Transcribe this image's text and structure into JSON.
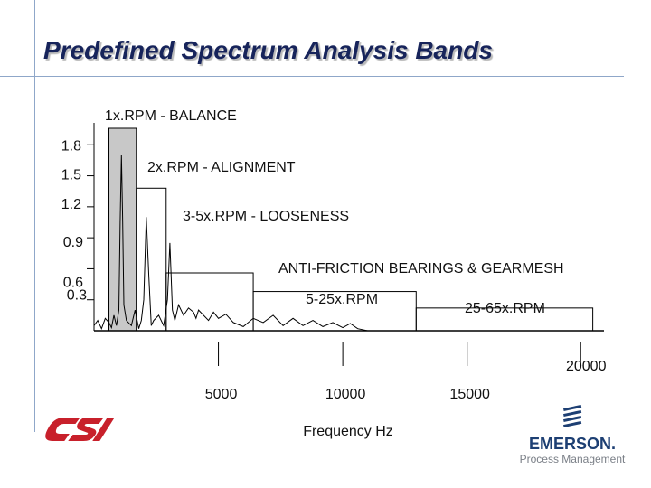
{
  "slide": {
    "title": "Predefined Spectrum Analysis Bands"
  },
  "chart_data": {
    "type": "line",
    "title": "Predefined Spectrum Analysis Bands",
    "xlabel": "Frequency Hz",
    "ylabel": "",
    "x_ticks": [
      {
        "value": 5000,
        "label": "5000"
      },
      {
        "value": 10000,
        "label": "10000"
      },
      {
        "value": 15000,
        "label": "15000"
      },
      {
        "value": 20000,
        "label": "20000"
      }
    ],
    "y_ticks": [
      {
        "value": 1.8,
        "label": "1.8"
      },
      {
        "value": 1.5,
        "label": "1.5"
      },
      {
        "value": 1.2,
        "label": "1.2"
      },
      {
        "value": 0.9,
        "label": "0.9"
      },
      {
        "value": 0.6,
        "label": "0.6"
      },
      {
        "value": 0.3,
        "label": "0.3"
      }
    ],
    "xlim": [
      0,
      20500
    ],
    "ylim": [
      0,
      1.96
    ],
    "bands": [
      {
        "label": "1x.RPM - BALANCE",
        "x_start": 600,
        "x_end": 1700,
        "level": 1.96,
        "shaded": true
      },
      {
        "label": "2x.RPM - ALIGNMENT",
        "x_start": 1700,
        "x_end": 2900,
        "level": 1.38,
        "shaded": false
      },
      {
        "label": "3-5x.RPM - LOOSENESS",
        "x_start": 2900,
        "x_end": 6400,
        "level": 0.56,
        "shaded": false
      },
      {
        "label": "5-25x.RPM",
        "x_start": 6400,
        "x_end": 12950,
        "level": 0.38,
        "shaded": false
      },
      {
        "label": "25-65x.RPM",
        "x_start": 12950,
        "x_end": 20050,
        "level": 0.22,
        "shaded": false
      }
    ],
    "group_label": "ANTI-FRICTION BEARINGS & GEARMESH",
    "spectrum": {
      "x": [
        0,
        150,
        300,
        450,
        600,
        700,
        800,
        900,
        1000,
        1050,
        1100,
        1150,
        1200,
        1300,
        1500,
        1650,
        1800,
        1900,
        2000,
        2100,
        2200,
        2300,
        2400,
        2600,
        2800,
        2950,
        3050,
        3150,
        3250,
        3400,
        3600,
        3800,
        4000,
        4100,
        4200,
        4400,
        4600,
        4800,
        5000,
        5300,
        5600,
        6000,
        6400,
        6800,
        7200,
        7600,
        8000,
        8400,
        8800,
        9200,
        9600,
        10000,
        10300,
        10600,
        11000
      ],
      "y": [
        0.05,
        0.1,
        0.02,
        0.12,
        0.08,
        0.03,
        0.15,
        0.05,
        0.2,
        1.05,
        1.7,
        1.1,
        0.25,
        0.1,
        0.05,
        0.2,
        0.02,
        0.1,
        0.3,
        1.1,
        0.55,
        0.05,
        0.1,
        0.15,
        0.05,
        0.3,
        0.85,
        0.2,
        0.1,
        0.25,
        0.15,
        0.22,
        0.18,
        0.12,
        0.2,
        0.15,
        0.1,
        0.18,
        0.12,
        0.16,
        0.08,
        0.04,
        0.12,
        0.08,
        0.15,
        0.05,
        0.12,
        0.05,
        0.1,
        0.04,
        0.08,
        0.03,
        0.07,
        0.02,
        0.0
      ]
    }
  },
  "branding": {
    "csi_logo": "CSI",
    "emerson_word": "EMERSON.",
    "emerson_sub": "Process Management"
  }
}
